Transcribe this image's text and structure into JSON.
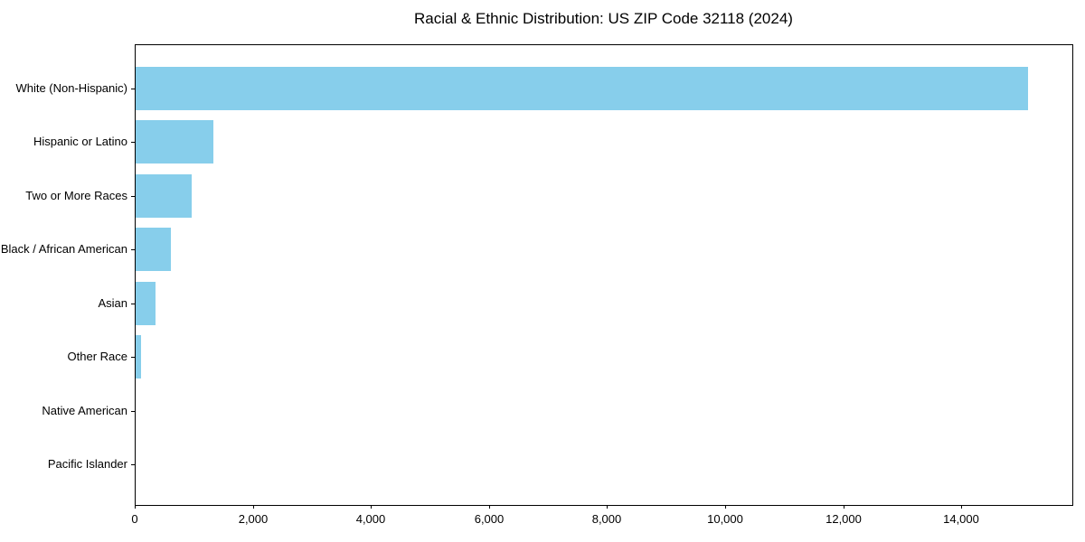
{
  "chart_data": {
    "type": "bar",
    "orientation": "horizontal",
    "title": "Racial & Ethnic Distribution: US ZIP Code 32118 (2024)",
    "categories": [
      "White (Non-Hispanic)",
      "Hispanic or Latino",
      "Two or More Races",
      "Black / African American",
      "Asian",
      "Other Race",
      "Native American",
      "Pacific Islander"
    ],
    "values": [
      15110,
      1320,
      950,
      600,
      330,
      90,
      0,
      0
    ],
    "xlabel": "",
    "ylabel": "",
    "xlim": [
      0,
      15880
    ],
    "xticks": [
      0,
      2000,
      4000,
      6000,
      8000,
      10000,
      12000,
      14000
    ],
    "xtick_labels": [
      "0",
      "2,000",
      "4,000",
      "6,000",
      "8,000",
      "10,000",
      "12,000",
      "14,000"
    ],
    "bar_color": "#87CEEB",
    "axis_color": "#000000",
    "text_color": "#000000",
    "background_color": "#FFFFFF",
    "grid": false,
    "legend": "none"
  }
}
